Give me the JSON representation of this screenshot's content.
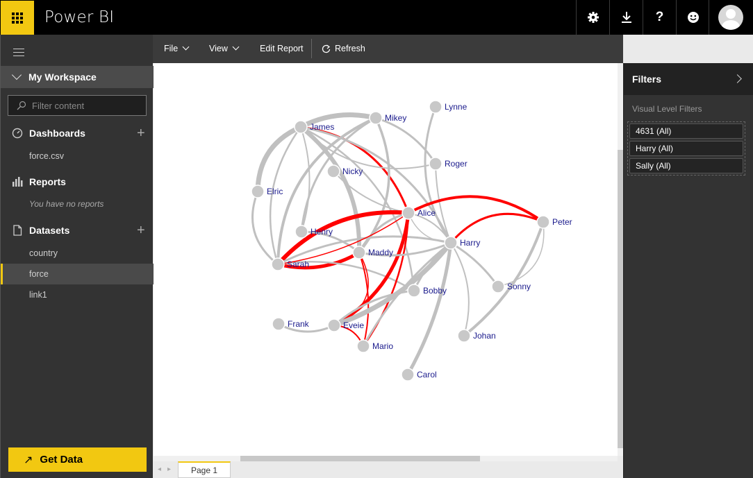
{
  "app": {
    "title": "Power BI"
  },
  "topbar": {
    "icons": [
      "settings-icon",
      "download-icon",
      "help-icon",
      "smiley-icon",
      "avatar"
    ]
  },
  "nav": {
    "workspace": "My Workspace",
    "filter_placeholder": "Filter content",
    "sections": {
      "dashboards": {
        "label": "Dashboards",
        "items": [
          "force.csv"
        ]
      },
      "reports": {
        "label": "Reports",
        "empty_note": "You have no reports"
      },
      "datasets": {
        "label": "Datasets",
        "items": [
          "country",
          "force",
          "link1"
        ],
        "selected": "force"
      }
    },
    "get_data": "Get Data"
  },
  "toolbar": {
    "file": "File",
    "view": "View",
    "edit_report": "Edit Report",
    "refresh": "Refresh"
  },
  "graph": {
    "nodes": [
      {
        "id": "James"
      },
      {
        "id": "Mikey"
      },
      {
        "id": "Lynne"
      },
      {
        "id": "Nicky"
      },
      {
        "id": "Roger"
      },
      {
        "id": "Elric"
      },
      {
        "id": "Alice"
      },
      {
        "id": "Peter"
      },
      {
        "id": "Henry"
      },
      {
        "id": "Harry"
      },
      {
        "id": "Maddy"
      },
      {
        "id": "Sarah"
      },
      {
        "id": "Sonny"
      },
      {
        "id": "Bobby"
      },
      {
        "id": "Frank"
      },
      {
        "id": "Eveie"
      },
      {
        "id": "Johan"
      },
      {
        "id": "Mario"
      },
      {
        "id": "Carol"
      }
    ],
    "link_colors": {
      "default": "#c0c0c0",
      "highlight": "#ff0000"
    },
    "node_color": "#c8c8c8",
    "label_color": "#1a1a8c"
  },
  "pages": [
    "Page 1"
  ],
  "filters": {
    "title": "Filters",
    "section": "Visual Level Filters",
    "cards": [
      "4631 (All)",
      "Harry (All)",
      "Sally (All)"
    ]
  },
  "colors": {
    "accent": "#f2c811",
    "topbar": "#000000",
    "nav": "#333333"
  }
}
